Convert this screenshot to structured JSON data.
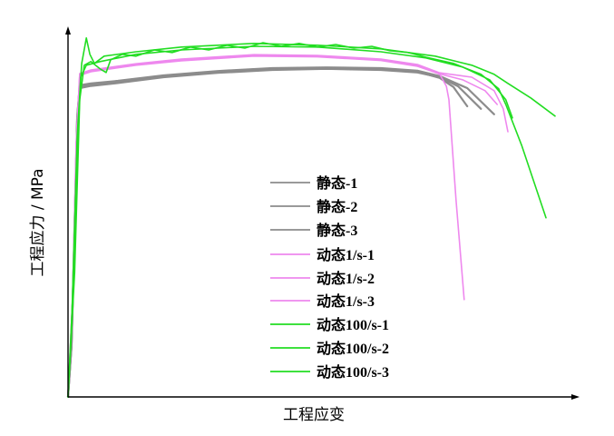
{
  "chart_data": {
    "type": "line",
    "xlabel": "工程应变",
    "ylabel": "工程应力 / MPa",
    "xlim": [
      0,
      100
    ],
    "ylim": [
      0,
      100
    ],
    "grid": false,
    "legend": "center",
    "series": [
      {
        "name": "静态-1",
        "color": "#8c8c8c",
        "x": [
          0,
          0.7,
          1.3,
          1.8,
          2.3,
          4.5,
          9.8,
          18.8,
          29.5,
          40.2,
          50.9,
          61.6,
          68.8,
          73.2,
          75.9,
          78.6
        ],
        "y": [
          0,
          14.3,
          46.8,
          76.8,
          85.5,
          86.0,
          86.8,
          88.3,
          89.5,
          90.3,
          90.5,
          90.3,
          89.5,
          87.8,
          85.3,
          80.0
        ]
      },
      {
        "name": "静态-2",
        "color": "#8c8c8c",
        "x": [
          0,
          0.7,
          1.3,
          1.8,
          2.3,
          4.5,
          9.8,
          18.8,
          29.5,
          40.2,
          50.9,
          61.6,
          68.8,
          73.2,
          76.8,
          81.3
        ],
        "y": [
          0,
          14.0,
          46.0,
          76.0,
          85.0,
          85.6,
          86.4,
          88.0,
          89.2,
          90.0,
          90.3,
          90.0,
          89.3,
          88.0,
          85.5,
          79.3
        ]
      },
      {
        "name": "静态-3",
        "color": "#8c8c8c",
        "x": [
          0,
          0.7,
          1.3,
          1.8,
          2.3,
          4.5,
          9.8,
          18.8,
          29.5,
          40.2,
          50.9,
          61.6,
          68.8,
          73.2,
          78.6,
          83.9
        ],
        "y": [
          0,
          14.5,
          47.0,
          77.0,
          85.8,
          86.3,
          87.0,
          88.5,
          89.7,
          90.5,
          90.7,
          90.5,
          89.8,
          88.3,
          85.0,
          77.8
        ]
      },
      {
        "name": "动态1/s-1",
        "color": "#ee88ee",
        "x": [
          0,
          0.9,
          1.6,
          2.3,
          4.5,
          13.4,
          22.3,
          36.6,
          49.1,
          61.6,
          68.8,
          73.2,
          74.5,
          75.0,
          76.4,
          78.0
        ],
        "y": [
          0,
          26.8,
          69.3,
          88.8,
          89.8,
          91.5,
          92.8,
          94.0,
          93.8,
          92.8,
          91.3,
          88.8,
          85.5,
          81.8,
          54.3,
          26.8
        ]
      },
      {
        "name": "动态1/s-2",
        "color": "#ee88ee",
        "x": [
          0,
          0.9,
          1.6,
          2.3,
          4.5,
          13.4,
          22.3,
          36.6,
          49.1,
          61.6,
          68.8,
          73.2,
          77.7,
          82.1,
          84.5
        ],
        "y": [
          0,
          26.5,
          69.0,
          88.5,
          89.5,
          91.3,
          92.5,
          93.8,
          93.6,
          92.6,
          91.0,
          88.9,
          87.3,
          84.3,
          80.5
        ]
      },
      {
        "name": "动态1/s-3",
        "color": "#ee88ee",
        "x": [
          0,
          0.9,
          1.6,
          2.3,
          4.5,
          13.4,
          22.3,
          36.6,
          49.1,
          61.6,
          68.8,
          73.2,
          79.5,
          83.9,
          85.7,
          86.6
        ],
        "y": [
          0,
          27.0,
          69.5,
          89.0,
          90.0,
          91.7,
          93.0,
          94.2,
          94.0,
          93.0,
          91.5,
          89.2,
          88.0,
          84.3,
          79.3,
          73.0
        ]
      },
      {
        "name": "动态100/s-1",
        "color": "#22dd22",
        "x": [
          0,
          0.9,
          1.8,
          2.7,
          3.6,
          4.3,
          5.2,
          7.1,
          13.4,
          22.3,
          36.6,
          49.1,
          61.6,
          72.3,
          79.5,
          83.9,
          86.6,
          91.1,
          95.9
        ],
        "y": [
          0,
          26.8,
          71.8,
          91.8,
          98.8,
          94.3,
          91.8,
          93.8,
          95.0,
          96.3,
          97.3,
          96.8,
          95.8,
          93.8,
          91.3,
          88.8,
          86.3,
          82.3,
          77.3
        ]
      },
      {
        "name": "动态100/s-2",
        "color": "#22dd22",
        "x": [
          0,
          1.3,
          2.3,
          3.2,
          4.5,
          6.3,
          7.5,
          8.4,
          10.7,
          13.4,
          17.0,
          20.5,
          24.1,
          27.7,
          31.3,
          34.8,
          38.4,
          42.0,
          45.5,
          49.1,
          52.7,
          56.3,
          59.8,
          63.4,
          67.0,
          70.5,
          75.9,
          81.3,
          84.8,
          86.2,
          89.3,
          94.1
        ],
        "y": [
          0,
          34.3,
          81.8,
          91.3,
          92.3,
          90.3,
          89.3,
          92.8,
          94.3,
          93.8,
          95.5,
          94.8,
          96.3,
          95.5,
          96.8,
          96.0,
          97.5,
          96.5,
          97.3,
          96.3,
          97.0,
          96.0,
          96.5,
          95.3,
          94.8,
          93.5,
          91.8,
          88.8,
          84.8,
          80.5,
          69.3,
          49.3
        ]
      },
      {
        "name": "动态100/s-3",
        "color": "#22dd22",
        "x": [
          0,
          0.7,
          1.6,
          2.5,
          3.6,
          6.3,
          13.4,
          22.3,
          36.6,
          49.1,
          61.6,
          70.5,
          77.7,
          83.0,
          86.2,
          87.5
        ],
        "y": [
          0,
          19.3,
          61.8,
          88.0,
          91.3,
          92.3,
          94.3,
          95.5,
          96.5,
          96.3,
          95.0,
          93.3,
          90.8,
          87.3,
          81.8,
          76.8
        ]
      }
    ]
  }
}
